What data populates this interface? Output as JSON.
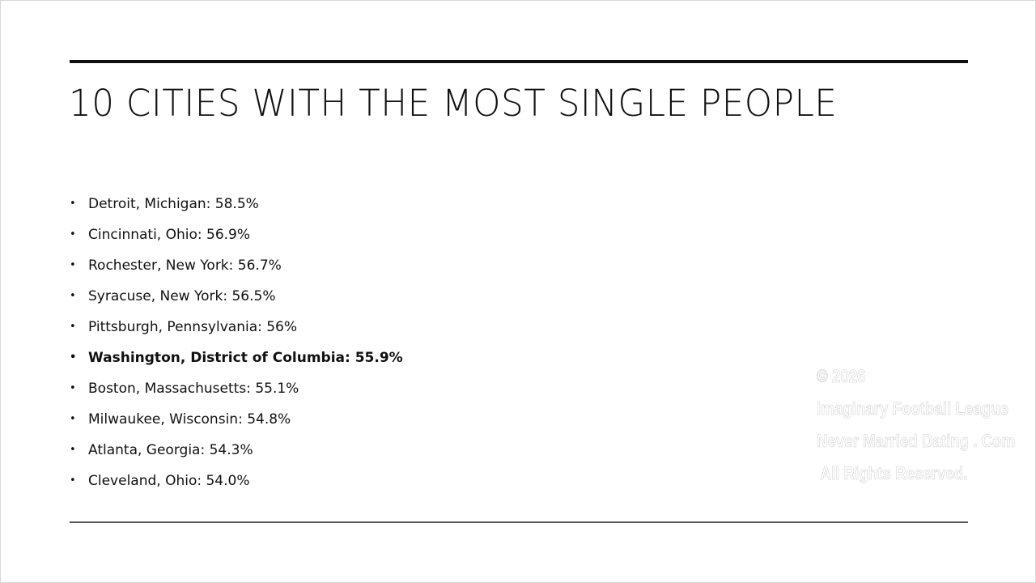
{
  "title": "10 CITIES WITH THE MOST SINGLE PEOPLE",
  "items": [
    "Detroit, Michigan: 58.5%",
    "Cincinnati, Ohio: 56.9%",
    "Rochester, New York: 56.7%",
    "Syracuse, New York: 56.5%",
    "Pittsburgh, Pennsylvania: 56%",
    "Washington, District of Columbia: 55.9%",
    "Boston, Massachusetts: 55.1%",
    "Milwaukee, Wisconsin: 54.8%",
    "Atlanta, Georgia: 54.3%",
    "Cleveland, Ohio: 54.0%"
  ],
  "watermark": [
    "© 2026",
    "Imaginary Football League",
    "Never Married Dating . Com",
    " All Rights Reserved."
  ]
}
